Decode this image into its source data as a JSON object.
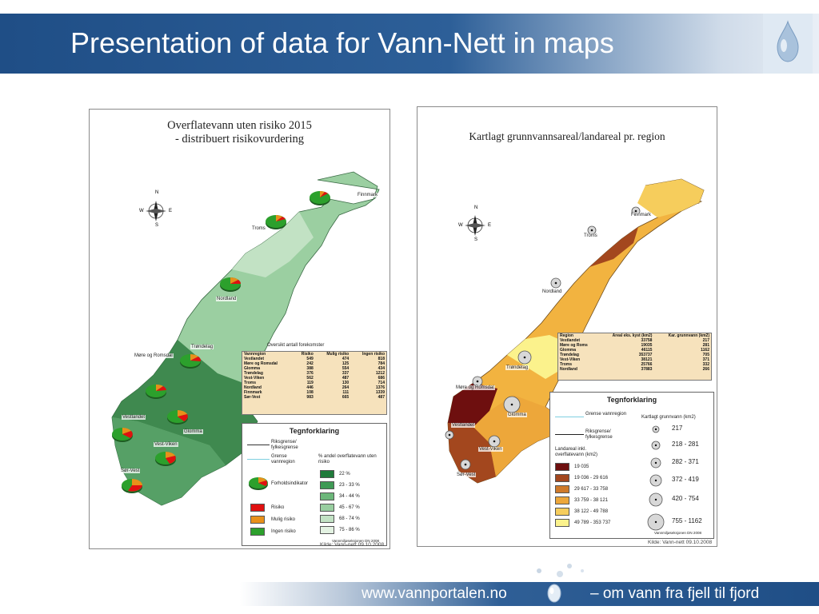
{
  "title": "Presentation of data for Vann-Nett in maps",
  "footer": {
    "url": "www.vannportalen.no",
    "slogan": "– om vann fra fjell til fjord"
  },
  "left_map": {
    "title_line1": "Overflatevann uten risiko 2015",
    "title_line2": "- distribuert risikovurdering",
    "source": "Kilde: Vann-nett 09.10.2008",
    "region_labels": [
      "Finnmark",
      "Troms",
      "Nordland",
      "Trøndelag",
      "Møre og Romsdal",
      "Vestlandet",
      "Glomma",
      "Vest-Viken",
      "Sør-Vest"
    ],
    "overview_title": "Oversikt antall forekomster",
    "table_headers": [
      "Vannregion",
      "Risiko",
      "Mulig risiko",
      "Ingen risiko"
    ],
    "table_rows": [
      [
        "Vestlandet",
        "549",
        "474",
        "818"
      ],
      [
        "Møre og Romsdal",
        "242",
        "125",
        "784"
      ],
      [
        "Glomma",
        "388",
        "554",
        "434"
      ],
      [
        "Trøndelag",
        "376",
        "337",
        "1212"
      ],
      [
        "Vest-Viken",
        "562",
        "487",
        "686"
      ],
      [
        "Troms",
        "119",
        "130",
        "714"
      ],
      [
        "Nordland",
        "446",
        "264",
        "1376"
      ],
      [
        "Finnmark",
        "108",
        "111",
        "1339"
      ],
      [
        "Sør-Vest",
        "983",
        "665",
        "487"
      ]
    ],
    "legend": {
      "title": "Tegnforklaring",
      "line1": "Riksgrense/ fylkesgrense",
      "line2": "Grense vannregion",
      "pie_label": "Forholdsindikator",
      "pct_header": "% andel overflatevann uten risiko",
      "classes": [
        "22 %",
        "23 - 33 %",
        "34 - 44 %",
        "45 - 67 %",
        "68 - 74 %",
        "75 - 86 %"
      ],
      "class_colors": [
        "#1f7a3a",
        "#3f9a55",
        "#6cb77a",
        "#98cea0",
        "#c2e2c4",
        "#e3f2e2"
      ],
      "risk_labels": [
        "Risiko",
        "Mulig risiko",
        "Ingen risiko"
      ],
      "risk_colors": [
        "#e01010",
        "#e8901a",
        "#2ca02c"
      ],
      "credit": "Vannmiljøseksjonen DN 2008"
    },
    "compass": [
      "N",
      "S",
      "W",
      "E"
    ]
  },
  "right_map": {
    "title": "Kartlagt grunnvannsareal/landareal pr. region",
    "source": "Kilde: Vann-nett 09.10.2008",
    "region_labels": [
      "Finnmark",
      "Troms",
      "Nordland",
      "Trøndelag",
      "Møre og Romsdal",
      "Glomma",
      "Vestlandet",
      "Vest-Viken",
      "Sør-Vest"
    ],
    "table_headers": [
      "Region",
      "Areal eks. kyst (km2)",
      "Kar. grunnvann (km2)"
    ],
    "table_rows": [
      [
        "Vestlandet",
        "33758",
        "217"
      ],
      [
        "Møre og Roms",
        "19035",
        "281"
      ],
      [
        "Glomma",
        "46115",
        "1162"
      ],
      [
        "Trøndelag",
        "353737",
        "705"
      ],
      [
        "Vest-Viken",
        "38121",
        "371"
      ],
      [
        "Troms",
        "25766",
        "332"
      ],
      [
        "Nordland",
        "37883",
        "266"
      ]
    ],
    "legend": {
      "title": "Tegnforklaring",
      "line1": "Grense vannregion",
      "line2": "Riksgrense/ fylkesgrense",
      "area_header": "Landareal inkl. overflatevann (km2)",
      "circle_header": "Kartlagt grunnvann (km2)",
      "classes": [
        "19 035",
        "19 036 - 29 616",
        "29 617 - 33 758",
        "33 759 - 38 121",
        "38 122 - 49 788",
        "49 789 - 353 737"
      ],
      "class_colors": [
        "#6e0f0f",
        "#a3471e",
        "#cf7a2a",
        "#eda73a",
        "#f6cd5c",
        "#fbf28c"
      ],
      "circle_classes": [
        "217",
        "218 - 281",
        "282 - 371",
        "372 - 419",
        "420 - 754",
        "755 - 1162"
      ],
      "credit": "Vannmiljøseksjonen DN 2008"
    },
    "compass": [
      "N",
      "S",
      "W",
      "E"
    ]
  }
}
